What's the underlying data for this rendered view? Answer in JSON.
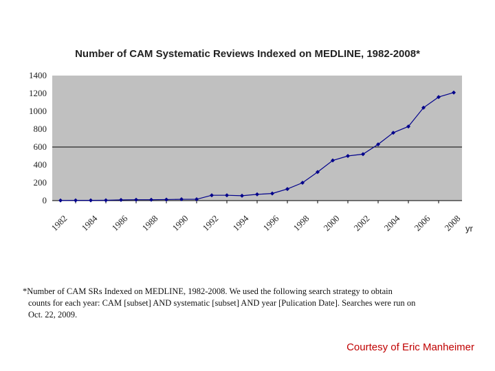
{
  "chart_data": {
    "type": "line",
    "title": "Number of CAM Systematic Reviews Indexed on MEDLINE, 1982-2008*",
    "xlabel": "yr",
    "ylabel": "",
    "x": [
      1982,
      1983,
      1984,
      1985,
      1986,
      1987,
      1988,
      1989,
      1990,
      1991,
      1992,
      1993,
      1994,
      1995,
      1996,
      1997,
      1998,
      1999,
      2000,
      2001,
      2002,
      2003,
      2004,
      2005,
      2006,
      2007,
      2008
    ],
    "y": [
      2,
      3,
      3,
      4,
      8,
      10,
      10,
      12,
      15,
      15,
      60,
      60,
      55,
      70,
      80,
      130,
      200,
      320,
      450,
      500,
      520,
      630,
      760,
      830,
      1040,
      1160,
      1210
    ],
    "x_tick_labels": [
      "1982",
      "1984",
      "1986",
      "1988",
      "1990",
      "1992",
      "1994",
      "1996",
      "1998",
      "2000",
      "2002",
      "2004",
      "2006",
      "2008"
    ],
    "y_tick_labels": [
      "0",
      "200",
      "400",
      "600",
      "800",
      "1000",
      "1200",
      "1400"
    ],
    "ylim": [
      0,
      1400
    ],
    "grid": "single horizontal gridline at 600",
    "plot_background": "#c0c0c0",
    "line_color": "#00008b",
    "marker": "diamond",
    "legend": "none"
  },
  "footnote": {
    "line1": "*Number of CAM SRs Indexed on MEDLINE, 1982-2008.  We used the following search strategy to obtain",
    "line2": "counts for each year: CAM [subset] AND systematic [subset] AND year [Pulication Date]. Searches were run on",
    "line3": "Oct. 22, 2009."
  },
  "credit": "Courtesy of Eric Manheimer",
  "colors": {
    "credit": "#c00000",
    "text": "#222222"
  }
}
